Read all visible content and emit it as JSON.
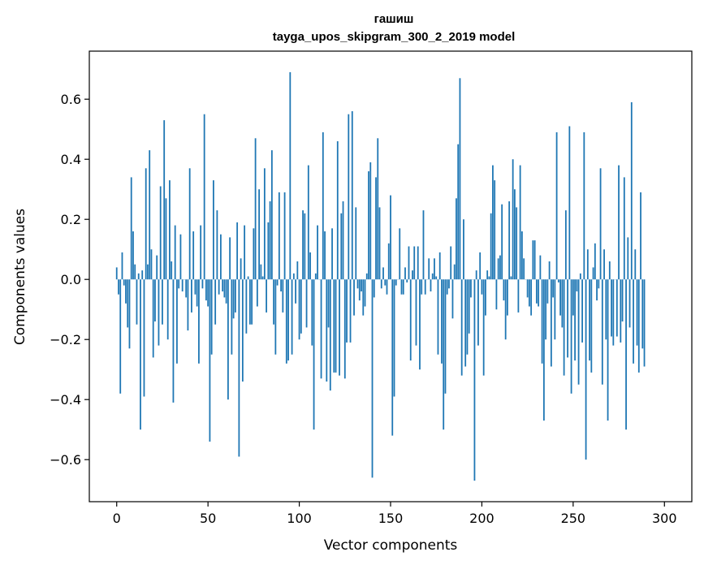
{
  "chart_data": {
    "type": "bar",
    "title": "гашиш",
    "subtitle": "tayga_upos_skipgram_300_2_2019 model",
    "xlabel": "Vector components",
    "ylabel": "Components values",
    "xlim": [
      -15,
      315
    ],
    "ylim": [
      -0.74,
      0.76
    ],
    "xticks": [
      0,
      50,
      100,
      150,
      200,
      250,
      300
    ],
    "yticks": [
      -0.6,
      -0.4,
      -0.2,
      0.0,
      0.2,
      0.4,
      0.6
    ],
    "ytick_labels": [
      "−0.6",
      "−0.4",
      "−0.2",
      "0.0",
      "0.2",
      "0.4",
      "0.6"
    ],
    "bar_color": "#1f77b4",
    "grid": false,
    "values": [
      0.04,
      -0.05,
      -0.38,
      0.09,
      -0.02,
      -0.08,
      -0.16,
      -0.23,
      0.34,
      0.16,
      0.05,
      -0.15,
      0.02,
      -0.5,
      0.03,
      -0.39,
      0.37,
      0.05,
      0.43,
      0.1,
      -0.26,
      -0.14,
      0.08,
      -0.22,
      0.31,
      -0.15,
      0.53,
      0.27,
      -0.2,
      0.33,
      0.06,
      -0.41,
      0.18,
      -0.28,
      -0.03,
      0.15,
      -0.04,
      0.0,
      -0.06,
      -0.17,
      0.37,
      -0.11,
      0.16,
      -0.05,
      -0.09,
      -0.28,
      0.18,
      -0.03,
      0.55,
      -0.07,
      -0.09,
      -0.54,
      -0.25,
      0.33,
      -0.15,
      0.23,
      -0.05,
      0.15,
      -0.04,
      -0.06,
      -0.08,
      -0.4,
      0.14,
      -0.25,
      -0.13,
      -0.11,
      0.19,
      -0.59,
      0.07,
      -0.34,
      0.18,
      -0.18,
      0.01,
      -0.15,
      -0.15,
      0.17,
      0.47,
      -0.09,
      0.3,
      0.05,
      0.01,
      0.37,
      -0.11,
      0.19,
      0.26,
      0.43,
      -0.15,
      -0.25,
      -0.02,
      0.29,
      -0.04,
      -0.11,
      0.29,
      -0.28,
      -0.27,
      0.69,
      -0.25,
      0.02,
      -0.08,
      0.06,
      -0.2,
      -0.18,
      0.23,
      0.22,
      -0.16,
      0.38,
      0.09,
      -0.22,
      -0.5,
      0.02,
      0.18,
      0.0,
      -0.33,
      0.49,
      0.16,
      -0.34,
      -0.16,
      -0.37,
      0.17,
      -0.31,
      -0.31,
      0.46,
      -0.32,
      0.22,
      0.26,
      -0.33,
      -0.21,
      0.55,
      -0.21,
      0.56,
      -0.12,
      0.24,
      -0.03,
      -0.07,
      -0.04,
      -0.12,
      -0.09,
      0.02,
      0.36,
      0.39,
      -0.66,
      -0.06,
      0.34,
      0.47,
      0.24,
      -0.03,
      0.04,
      -0.02,
      -0.05,
      0.12,
      0.28,
      -0.52,
      -0.39,
      -0.02,
      0.0,
      0.17,
      -0.05,
      -0.05,
      0.04,
      -0.01,
      0.11,
      -0.27,
      0.03,
      0.11,
      -0.22,
      0.11,
      -0.3,
      -0.05,
      0.23,
      -0.05,
      0.0,
      0.07,
      -0.04,
      0.02,
      0.07,
      0.01,
      -0.25,
      0.09,
      -0.28,
      -0.5,
      -0.38,
      -0.05,
      -0.03,
      0.11,
      -0.13,
      0.05,
      0.27,
      0.45,
      0.67,
      -0.32,
      0.2,
      -0.29,
      -0.25,
      -0.18,
      -0.06,
      0.0,
      -0.67,
      0.03,
      -0.22,
      0.09,
      -0.05,
      -0.32,
      -0.12,
      0.03,
      0.01,
      0.22,
      0.38,
      0.33,
      -0.1,
      0.07,
      0.08,
      0.25,
      -0.07,
      -0.2,
      -0.12,
      0.26,
      0.01,
      0.4,
      0.3,
      0.24,
      -0.11,
      0.38,
      0.16,
      0.07,
      0.0,
      -0.06,
      -0.09,
      -0.12,
      0.13,
      0.13,
      -0.08,
      -0.09,
      0.08,
      -0.28,
      -0.47,
      -0.2,
      -0.08,
      0.06,
      -0.29,
      -0.06,
      -0.2,
      0.49,
      -0.01,
      -0.12,
      -0.16,
      -0.32,
      0.23,
      -0.26,
      0.51,
      -0.38,
      -0.12,
      -0.27,
      -0.04,
      -0.35,
      0.02,
      -0.21,
      0.49,
      -0.6,
      0.1,
      -0.27,
      -0.31,
      0.04,
      0.12,
      -0.07,
      -0.03,
      0.37,
      -0.35,
      0.1,
      -0.2,
      -0.47,
      0.06,
      -0.19,
      -0.22,
      0.0,
      -0.19,
      0.38,
      -0.21,
      -0.14,
      0.34,
      -0.5,
      0.14,
      -0.16,
      0.59,
      -0.28,
      0.1,
      -0.22,
      -0.31,
      0.29,
      -0.23,
      -0.29
    ]
  }
}
